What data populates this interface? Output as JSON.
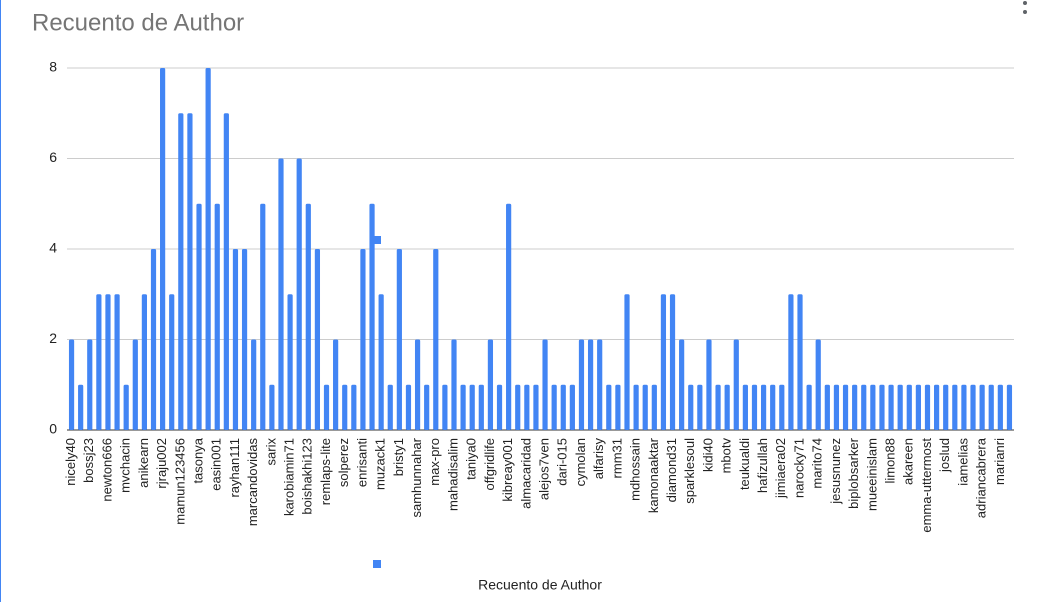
{
  "chart_data": {
    "type": "bar",
    "title": "Recuento de Author",
    "categories": [
      "nicely40",
      null,
      "bossj23",
      null,
      "newton666",
      null,
      "mvchacin",
      null,
      "anikearn",
      null,
      "rjraju002",
      null,
      "mamun123456",
      null,
      "tasonya",
      null,
      "easin001",
      null,
      "rayhan111",
      null,
      "marcandovidas",
      null,
      "sarix",
      null,
      "karobiamin71",
      null,
      "boishakhi123",
      null,
      "remlaps-lite",
      null,
      "solperez",
      null,
      "enrisanti",
      null,
      "muzack1",
      null,
      "bristy1",
      null,
      "samhunnahar",
      null,
      "max-pro",
      null,
      "mahadisalim",
      null,
      "taniya0",
      null,
      "offgridlife",
      null,
      "kibreay001",
      null,
      "almacaridad",
      null,
      "alejos7ven",
      null,
      "dari-015",
      null,
      "cymolan",
      null,
      "alfarisy",
      null,
      "rmm31",
      null,
      "mdhossain",
      null,
      "kamonaaktar",
      null,
      "diamond31",
      null,
      "sparklesoul",
      null,
      "kidi40",
      null,
      "mbotv",
      null,
      "teukualdi",
      null,
      "hafizullah",
      null,
      "jimiaera02",
      null,
      "narocky71",
      null,
      "marito74",
      null,
      "jesusnunez",
      null,
      "biplobsarker",
      null,
      "mueeinislam",
      null,
      "limon88",
      null,
      "akareen",
      null,
      "emma-uttermost",
      null,
      "joslud",
      null,
      "iamelias",
      null,
      "adriancabrera",
      null,
      "marianri",
      null
    ],
    "series": [
      {
        "name": "Recuento de Author",
        "color": "#4285f4",
        "values": [
          2,
          1,
          2,
          3,
          3,
          3,
          1,
          2,
          3,
          4,
          8,
          3,
          7,
          7,
          5,
          8,
          5,
          7,
          4,
          4,
          2,
          5,
          1,
          6,
          3,
          6,
          5,
          4,
          1,
          2,
          1,
          1,
          4,
          5,
          3,
          1,
          4,
          1,
          2,
          1,
          4,
          1,
          2,
          1,
          1,
          1,
          2,
          1,
          5,
          1,
          1,
          1,
          2,
          1,
          1,
          1,
          2,
          2,
          2,
          1,
          1,
          3,
          1,
          1,
          1,
          3,
          3,
          2,
          1,
          1,
          2,
          1,
          1,
          2,
          1,
          1,
          1,
          1,
          1,
          3,
          3,
          1,
          2,
          1,
          1,
          1,
          1,
          1,
          1,
          1,
          1,
          1,
          1,
          1,
          1,
          1,
          1,
          1,
          1,
          1,
          1,
          1,
          1,
          1
        ]
      }
    ],
    "ylim": [
      0,
      8
    ],
    "yticks": [
      0,
      2,
      4,
      6,
      8
    ],
    "grid": true
  }
}
